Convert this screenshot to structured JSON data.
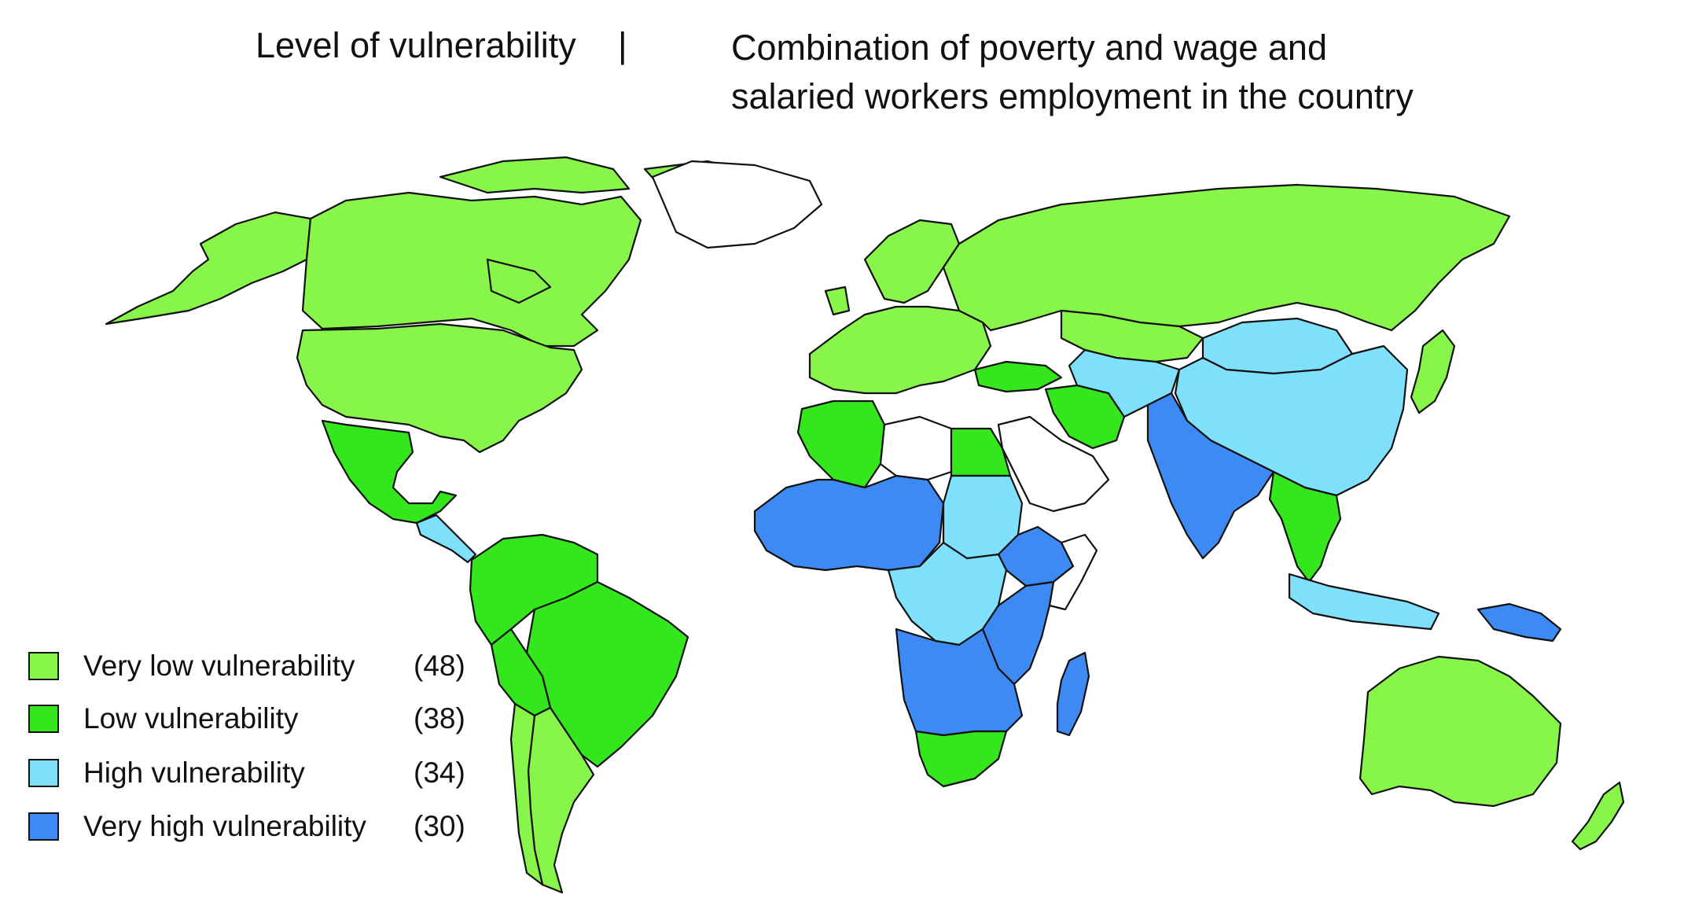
{
  "title": {
    "left": "Level of vulnerability",
    "separator": "|",
    "right_line1": "Combination of poverty and wage and",
    "right_line2": "salaried workers employment in the country"
  },
  "colors": {
    "very_low": "#88f54a",
    "low": "#34e61c",
    "high": "#7fe0fb",
    "very_high": "#3d8af5",
    "no_data": "#ffffff",
    "border": "#111111"
  },
  "legend": [
    {
      "label": "Very low vulnerability",
      "count": "(48)",
      "color": "#88f54a"
    },
    {
      "label": "Low vulnerability",
      "count": "(38)",
      "color": "#34e61c"
    },
    {
      "label": "High vulnerability",
      "count": "(34)",
      "color": "#7fe0fb"
    },
    {
      "label": "Very high vulnerability",
      "count": "(30)",
      "color": "#3d8af5"
    }
  ],
  "regions": [
    {
      "name": "Canada",
      "level": "very_low"
    },
    {
      "name": "Alaska",
      "level": "very_low"
    },
    {
      "name": "United States",
      "level": "very_low"
    },
    {
      "name": "Greenland",
      "level": "no_data"
    },
    {
      "name": "Mexico",
      "level": "low"
    },
    {
      "name": "Central America",
      "level": "high"
    },
    {
      "name": "Northern South America",
      "level": "low"
    },
    {
      "name": "Brazil",
      "level": "low"
    },
    {
      "name": "Bolivia",
      "level": "low"
    },
    {
      "name": "Argentina",
      "level": "very_low"
    },
    {
      "name": "Chile",
      "level": "very_low"
    },
    {
      "name": "Western Europe",
      "level": "very_low"
    },
    {
      "name": "Scandinavia",
      "level": "very_low"
    },
    {
      "name": "Russia",
      "level": "very_low"
    },
    {
      "name": "Kazakhstan",
      "level": "very_low"
    },
    {
      "name": "Turkey",
      "level": "low"
    },
    {
      "name": "Iran",
      "level": "low"
    },
    {
      "name": "Saudi Arabia",
      "level": "no_data"
    },
    {
      "name": "Libya",
      "level": "no_data"
    },
    {
      "name": "Algeria",
      "level": "low"
    },
    {
      "name": "Egypt",
      "level": "low"
    },
    {
      "name": "West Africa",
      "level": "very_high"
    },
    {
      "name": "Sudan",
      "level": "high"
    },
    {
      "name": "Ethiopia",
      "level": "very_high"
    },
    {
      "name": "Central Africa",
      "level": "high"
    },
    {
      "name": "East Africa",
      "level": "very_high"
    },
    {
      "name": "Southern Africa",
      "level": "very_high"
    },
    {
      "name": "South Africa",
      "level": "low"
    },
    {
      "name": "Madagascar",
      "level": "very_high"
    },
    {
      "name": "Central Asia",
      "level": "high"
    },
    {
      "name": "China",
      "level": "high"
    },
    {
      "name": "Mongolia",
      "level": "high"
    },
    {
      "name": "India",
      "level": "very_high"
    },
    {
      "name": "Southeast Asia",
      "level": "low"
    },
    {
      "name": "Indonesia",
      "level": "high"
    },
    {
      "name": "Papua New Guinea",
      "level": "very_high"
    },
    {
      "name": "Japan",
      "level": "very_low"
    },
    {
      "name": "Australia",
      "level": "very_low"
    },
    {
      "name": "New Zealand",
      "level": "very_low"
    }
  ]
}
